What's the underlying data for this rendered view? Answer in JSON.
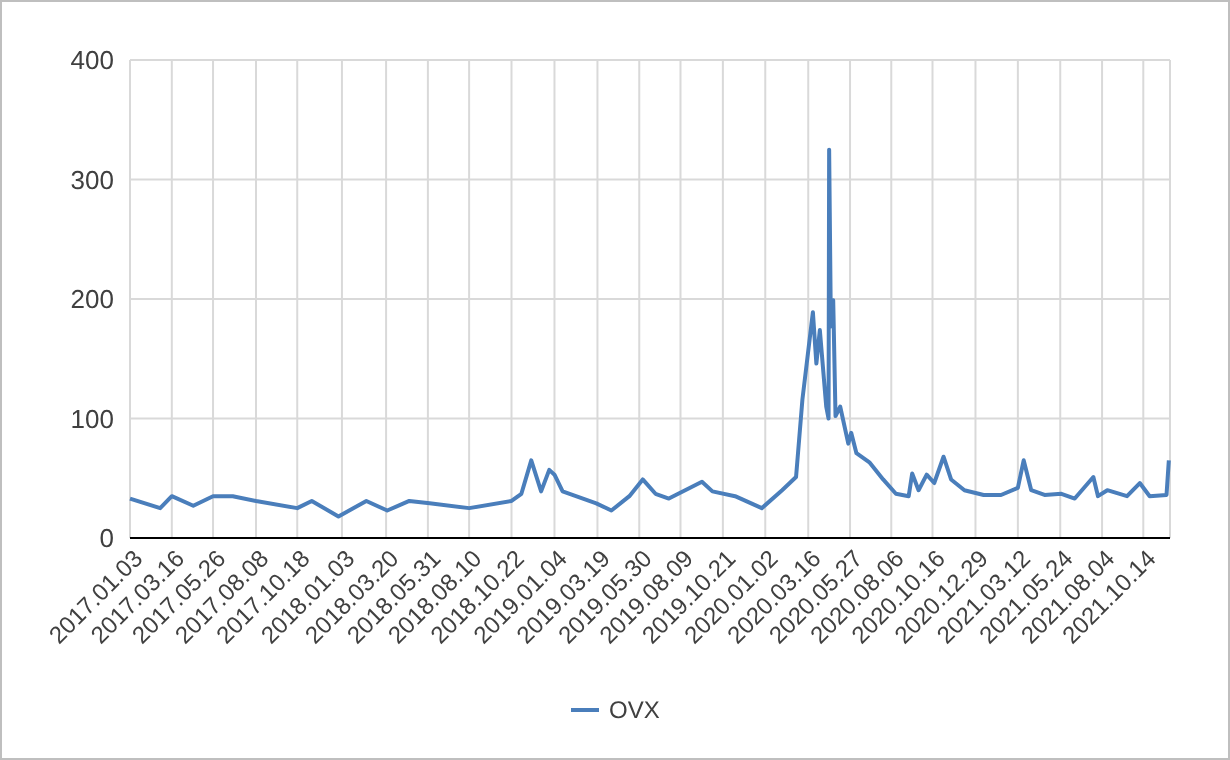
{
  "chart_data": {
    "type": "line",
    "legend": "bottom",
    "grid": true,
    "xlim": [
      "2017-01-03",
      "2021-11-29"
    ],
    "xticks": [
      {
        "value": "2017-01-03",
        "label": "2017.01.03"
      },
      {
        "value": "2017-03-16",
        "label": "2017.03.16"
      },
      {
        "value": "2017-05-26",
        "label": "2017.05.26"
      },
      {
        "value": "2017-08-08",
        "label": "2017.08.08"
      },
      {
        "value": "2017-10-18",
        "label": "2017.10.18"
      },
      {
        "value": "2018-01-03",
        "label": "2018.01.03"
      },
      {
        "value": "2018-03-20",
        "label": "2018.03.20"
      },
      {
        "value": "2018-05-31",
        "label": "2018.05.31"
      },
      {
        "value": "2018-08-10",
        "label": "2018.08.10"
      },
      {
        "value": "2018-10-22",
        "label": "2018.10.22"
      },
      {
        "value": "2019-01-04",
        "label": "2019.01.04"
      },
      {
        "value": "2019-03-19",
        "label": "2019.03.19"
      },
      {
        "value": "2019-05-30",
        "label": "2019.05.30"
      },
      {
        "value": "2019-08-09",
        "label": "2019.08.09"
      },
      {
        "value": "2019-10-21",
        "label": "2019.10.21"
      },
      {
        "value": "2020-01-02",
        "label": "2020.01.02"
      },
      {
        "value": "2020-03-16",
        "label": "2020.03.16"
      },
      {
        "value": "2020-05-27",
        "label": "2020.05.27"
      },
      {
        "value": "2020-08-06",
        "label": "2020.08.06"
      },
      {
        "value": "2020-10-16",
        "label": "2020.10.16"
      },
      {
        "value": "2020-12-29",
        "label": "2020.12.29"
      },
      {
        "value": "2021-03-12",
        "label": "2021.03.12"
      },
      {
        "value": "2021-05-24",
        "label": "2021.05.24"
      },
      {
        "value": "2021-08-04",
        "label": "2021.08.04"
      },
      {
        "value": "2021-10-14",
        "label": "2021.10.14"
      }
    ],
    "ylim": [
      0,
      400
    ],
    "yticks": [
      0,
      100,
      200,
      300,
      400
    ],
    "x": [
      "2017-01-03",
      "2017-02-24",
      "2017-03-16",
      "2017-04-22",
      "2017-05-26",
      "2017-06-29",
      "2017-08-08",
      "2017-10-18",
      "2017-11-12",
      "2017-12-28",
      "2018-02-14",
      "2018-03-22",
      "2018-04-29",
      "2018-06-03",
      "2018-08-10",
      "2018-10-22",
      "2018-11-08",
      "2018-11-25",
      "2018-12-12",
      "2018-12-26",
      "2019-01-04",
      "2019-01-18",
      "2019-03-17",
      "2019-04-12",
      "2019-05-13",
      "2019-06-05",
      "2019-06-27",
      "2019-07-20",
      "2019-09-15",
      "2019-10-03",
      "2019-11-11",
      "2019-12-27",
      "2020-01-31",
      "2020-02-24",
      "2020-03-06",
      "2020-03-24",
      "2020-03-30",
      "2020-04-05",
      "2020-04-16",
      "2020-04-20",
      "2020-04-21",
      "2020-04-24",
      "2020-04-28",
      "2020-05-02",
      "2020-05-10",
      "2020-05-24",
      "2020-05-29",
      "2020-06-07",
      "2020-06-30",
      "2020-07-23",
      "2020-08-14",
      "2020-09-05",
      "2020-09-11",
      "2020-09-22",
      "2020-10-06",
      "2020-10-19",
      "2020-11-04",
      "2020-11-17",
      "2020-12-10",
      "2021-01-12",
      "2021-02-11",
      "2021-03-12",
      "2021-03-22",
      "2021-04-04",
      "2021-04-27",
      "2021-05-26",
      "2021-06-18",
      "2021-07-20",
      "2021-07-28",
      "2021-08-13",
      "2021-09-16",
      "2021-10-08",
      "2021-10-25",
      "2021-11-23",
      "2021-11-27"
    ],
    "series": [
      {
        "name": "OVX",
        "color": "#4a7ebb",
        "values": [
          33,
          25,
          35,
          27,
          35,
          35,
          31,
          25,
          31,
          18,
          31,
          23,
          31,
          29,
          25,
          31,
          37,
          65,
          39,
          57,
          53,
          39,
          29,
          23,
          35,
          49,
          37,
          33,
          47,
          39,
          35,
          25,
          40,
          51,
          116,
          189,
          146,
          174,
          110,
          100,
          325,
          177,
          199,
          102,
          110,
          79,
          88,
          71,
          63,
          49,
          37,
          35,
          54,
          40,
          53,
          46,
          68,
          49,
          40,
          36,
          36,
          42,
          65,
          40,
          36,
          37,
          33,
          51,
          35,
          40,
          35,
          46,
          35,
          36,
          65
        ]
      }
    ]
  }
}
